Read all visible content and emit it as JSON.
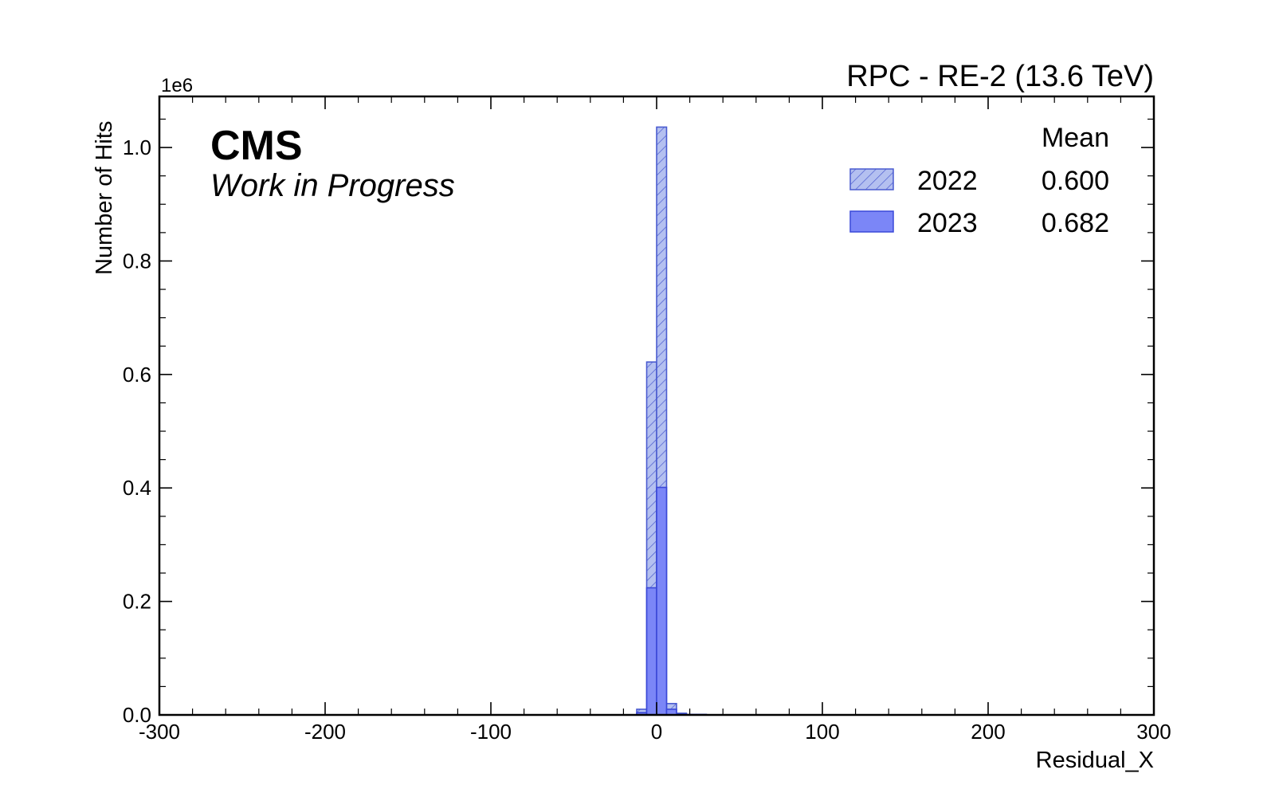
{
  "chart_data": {
    "type": "histogram",
    "title": "RPC - RE-2 (13.6 TeV)",
    "experiment_label": "CMS",
    "status_label": "Work in Progress",
    "xlabel": "Residual_X",
    "ylabel": "Number of Hits",
    "y_multiplier_label": "1e6",
    "xlim": [
      -300,
      300
    ],
    "ylim": [
      0,
      1.09
    ],
    "x_ticks": [
      -300,
      -200,
      -100,
      0,
      100,
      200,
      300
    ],
    "x_tick_labels": [
      "-300",
      "-200",
      "-100",
      "0",
      "100",
      "200",
      "300"
    ],
    "y_ticks": [
      0.0,
      0.2,
      0.4,
      0.6,
      0.8,
      1.0
    ],
    "y_tick_labels": [
      "0.0",
      "0.2",
      "0.4",
      "0.6",
      "0.8",
      "1.0"
    ],
    "legend_header": "Mean",
    "legend_position": "top-right",
    "series": [
      {
        "name": "2022",
        "mean": "0.600",
        "style": "hatched",
        "fill_color": "#b4c0f0",
        "edge_color": "#4a5bd0",
        "bin_edges": [
          -12,
          -6,
          0,
          6,
          12,
          18,
          24,
          30
        ],
        "values": [
          0.01,
          0.622,
          1.036,
          0.02,
          0.003,
          0.001,
          0.001
        ]
      },
      {
        "name": "2023",
        "mean": "0.682",
        "style": "solid",
        "fill_color": "#7b86f7",
        "edge_color": "#3a48d8",
        "bin_edges": [
          -12,
          -6,
          0,
          6,
          12,
          18
        ],
        "values": [
          0.004,
          0.224,
          0.401,
          0.01,
          0.001
        ]
      }
    ]
  }
}
